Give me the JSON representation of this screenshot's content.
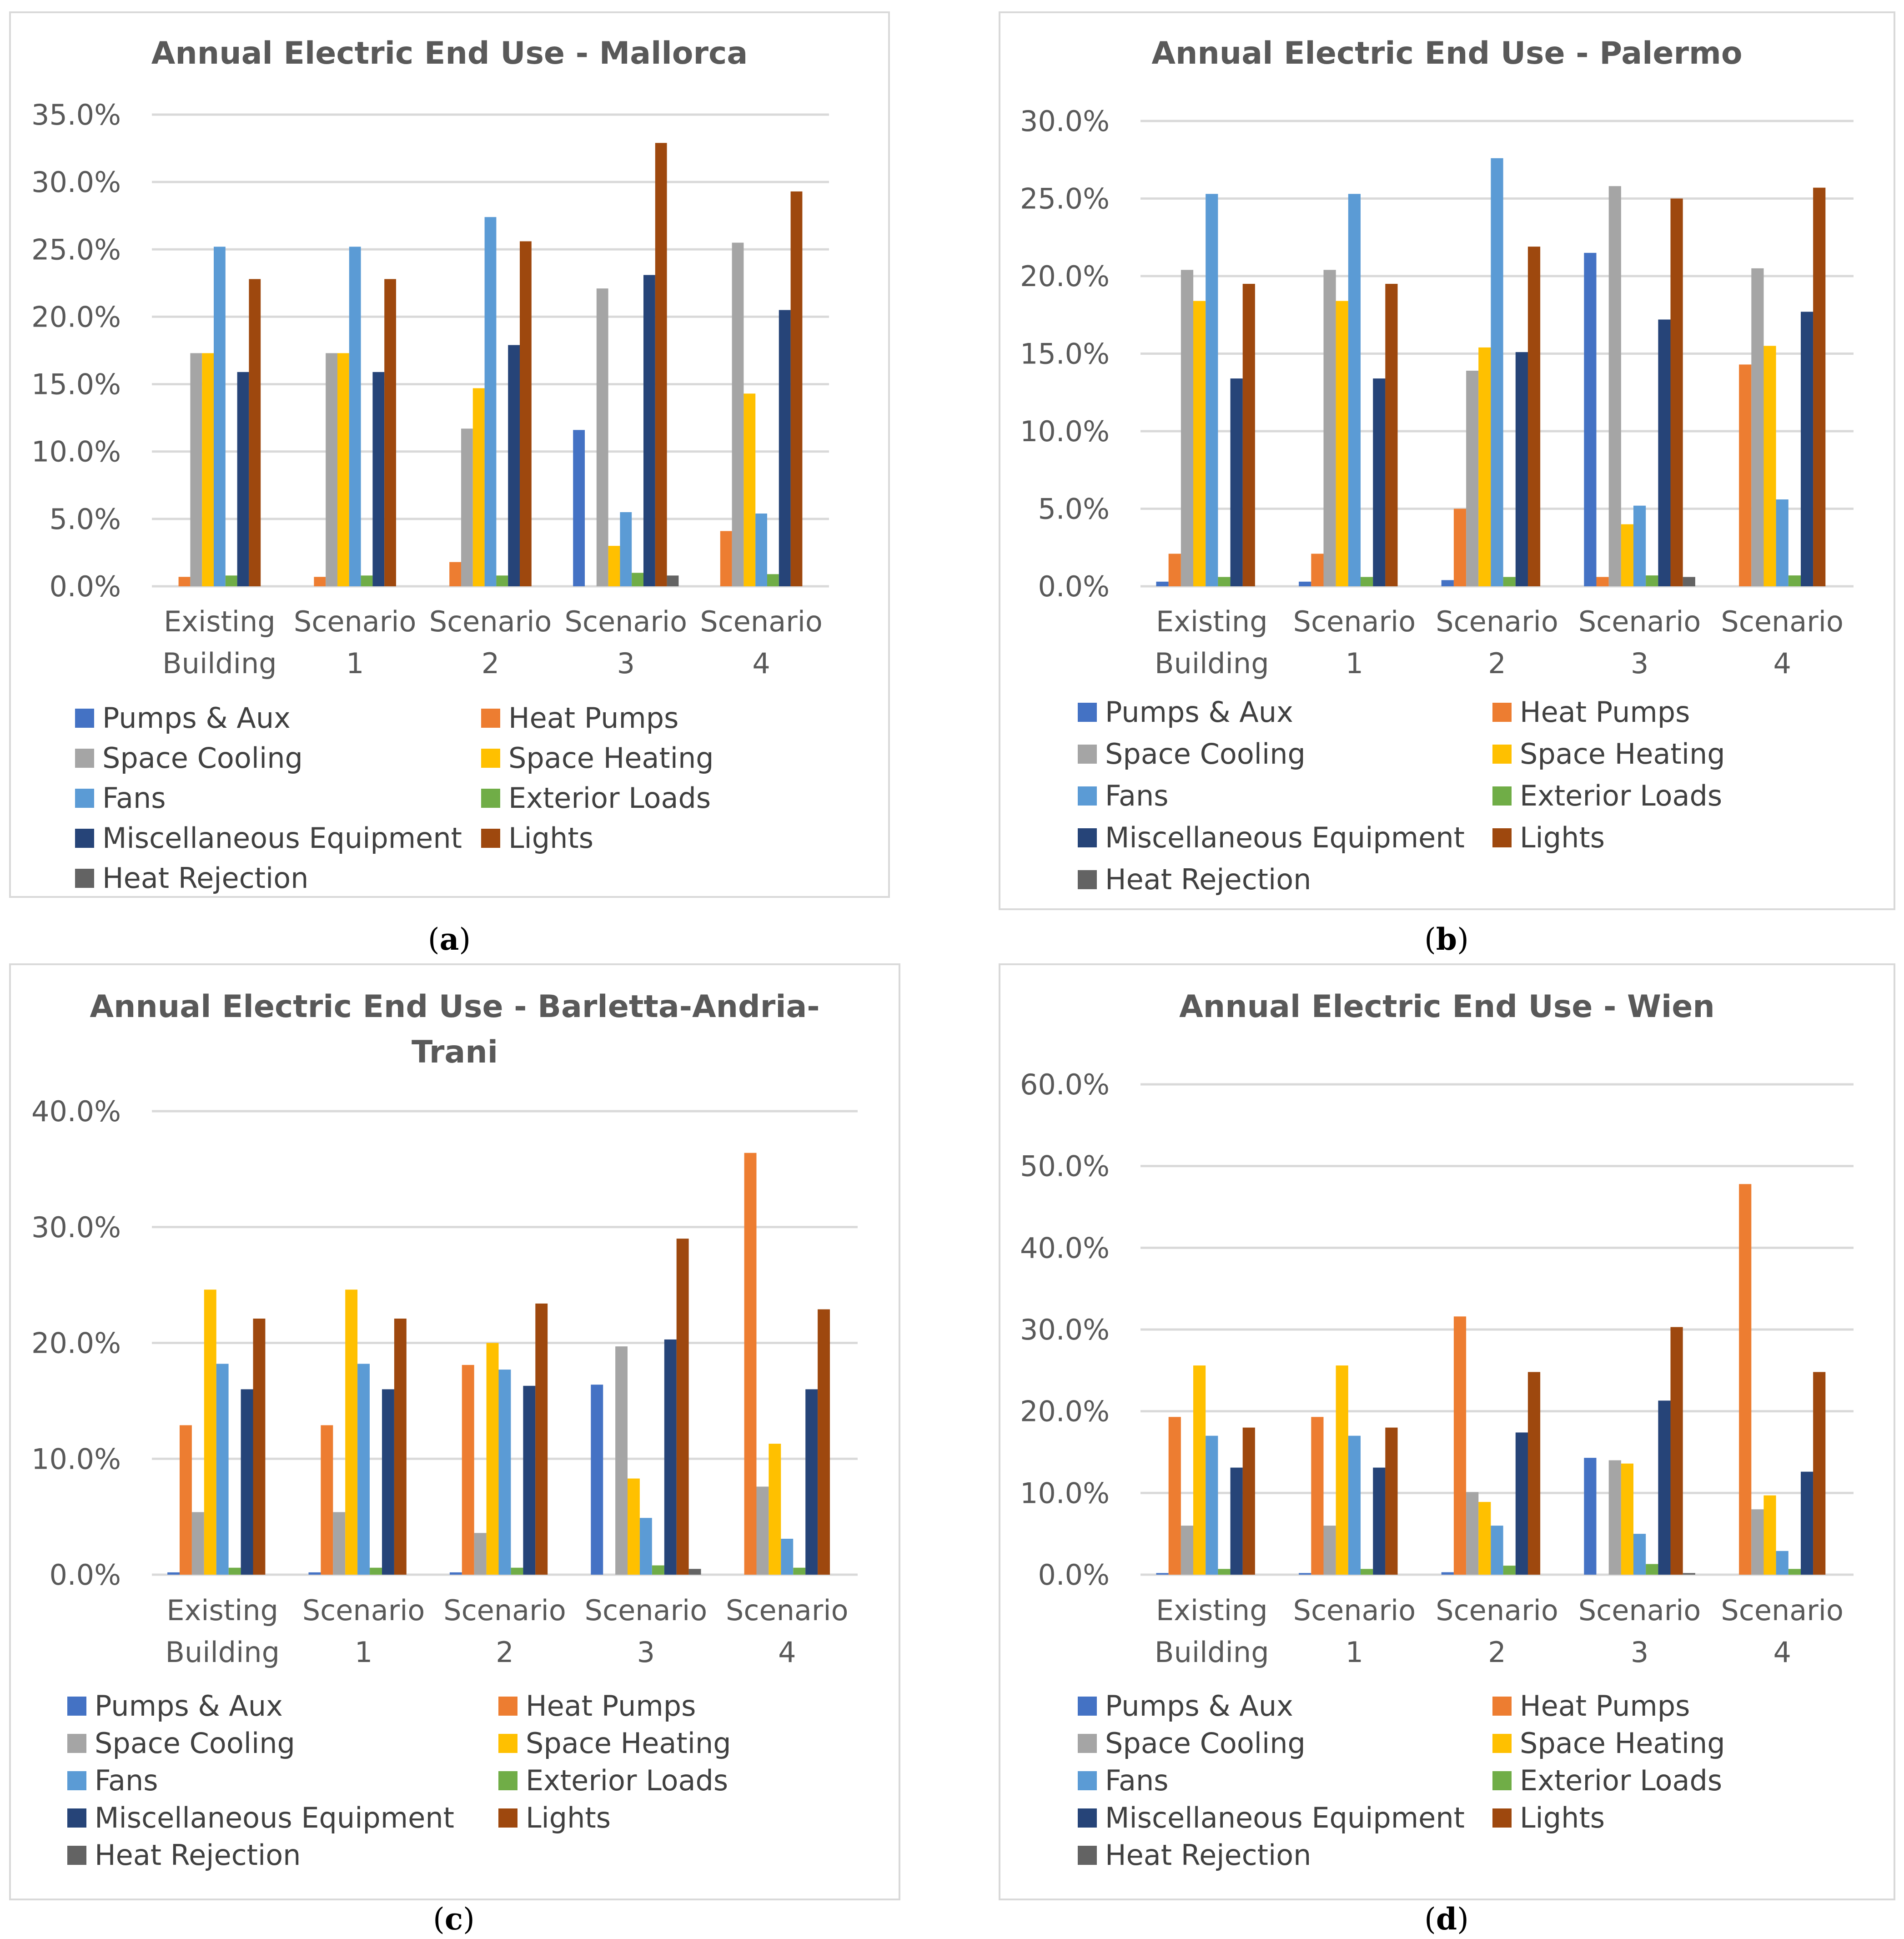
{
  "legend_colors": {
    "Pumps & Aux": "#4472C4",
    "Heat Pumps": "#ED7D31",
    "Space Cooling": "#A5A5A5",
    "Space Heating": "#FFC000",
    "Fans": "#5B9BD5",
    "Exterior Loads": "#70AD47",
    "Miscellaneous Equipment": "#264478",
    "Lights": "#9E480E",
    "Heat Rejection": "#636363"
  },
  "chart_data": [
    {
      "type": "bar",
      "panel": "(a)",
      "title": "Annual Electric End Use - Mallorca",
      "title_lines": [
        "Annual Electric End Use - Mallorca"
      ],
      "categories": [
        [
          "Existing",
          "Building"
        ],
        [
          "Scenario",
          "1"
        ],
        [
          "Scenario",
          "2"
        ],
        [
          "Scenario",
          "3"
        ],
        [
          "Scenario",
          "4"
        ]
      ],
      "yticks": [
        "0.0%",
        "5.0%",
        "10.0%",
        "15.0%",
        "20.0%",
        "25.0%",
        "30.0%",
        "35.0%"
      ],
      "ylim": [
        0,
        35
      ],
      "series": [
        {
          "name": "Pumps & Aux",
          "values": [
            0,
            0,
            0,
            11.6,
            0
          ]
        },
        {
          "name": "Heat Pumps",
          "values": [
            0.7,
            0.7,
            1.8,
            0,
            4.1
          ]
        },
        {
          "name": "Space Cooling",
          "values": [
            17.3,
            17.3,
            11.7,
            22.1,
            25.5
          ]
        },
        {
          "name": "Space Heating",
          "values": [
            17.3,
            17.3,
            14.7,
            3.0,
            14.3
          ]
        },
        {
          "name": "Fans",
          "values": [
            25.2,
            25.2,
            27.4,
            5.5,
            5.4
          ]
        },
        {
          "name": "Exterior Loads",
          "values": [
            0.8,
            0.8,
            0.8,
            1.0,
            0.9
          ]
        },
        {
          "name": "Miscellaneous Equipment",
          "values": [
            15.9,
            15.9,
            17.9,
            23.1,
            20.5
          ]
        },
        {
          "name": "Lights",
          "values": [
            22.8,
            22.8,
            25.6,
            32.9,
            29.3
          ]
        },
        {
          "name": "Heat Rejection",
          "values": [
            0,
            0,
            0,
            0.8,
            0
          ]
        }
      ],
      "caption": "a"
    },
    {
      "type": "bar",
      "panel": "(b)",
      "title": "Annual Electric End Use - Palermo",
      "title_lines": [
        "Annual Electric End Use - Palermo"
      ],
      "categories": [
        [
          "Existing",
          "Building"
        ],
        [
          "Scenario",
          "1"
        ],
        [
          "Scenario",
          "2"
        ],
        [
          "Scenario",
          "3"
        ],
        [
          "Scenario",
          "4"
        ]
      ],
      "yticks": [
        "0.0%",
        "5.0%",
        "10.0%",
        "15.0%",
        "20.0%",
        "25.0%",
        "30.0%"
      ],
      "ylim": [
        0,
        30
      ],
      "series": [
        {
          "name": "Pumps & Aux",
          "values": [
            0.3,
            0.3,
            0.4,
            21.5,
            0
          ]
        },
        {
          "name": "Heat Pumps",
          "values": [
            2.1,
            2.1,
            5.0,
            0.6,
            14.3
          ]
        },
        {
          "name": "Space Cooling",
          "values": [
            20.4,
            20.4,
            13.9,
            25.8,
            20.5
          ]
        },
        {
          "name": "Space Heating",
          "values": [
            18.4,
            18.4,
            15.4,
            4.0,
            15.5
          ]
        },
        {
          "name": "Fans",
          "values": [
            25.3,
            25.3,
            27.6,
            5.2,
            5.6
          ]
        },
        {
          "name": "Exterior Loads",
          "values": [
            0.6,
            0.6,
            0.6,
            0.7,
            0.7
          ]
        },
        {
          "name": "Miscellaneous Equipment",
          "values": [
            13.4,
            13.4,
            15.1,
            17.2,
            17.7
          ]
        },
        {
          "name": "Lights",
          "values": [
            19.5,
            19.5,
            21.9,
            25.0,
            25.7
          ]
        },
        {
          "name": "Heat Rejection",
          "values": [
            0,
            0,
            0,
            0.6,
            0
          ]
        }
      ],
      "caption": "b"
    },
    {
      "type": "bar",
      "panel": "(c)",
      "title": "Annual Electric End Use - Barletta-Andria-Trani",
      "title_lines": [
        "Annual Electric End Use - Barletta-Andria-",
        "Trani"
      ],
      "categories": [
        [
          "Existing",
          "Building"
        ],
        [
          "Scenario",
          "1"
        ],
        [
          "Scenario",
          "2"
        ],
        [
          "Scenario",
          "3"
        ],
        [
          "Scenario",
          "4"
        ]
      ],
      "yticks": [
        "0.0%",
        "10.0%",
        "20.0%",
        "30.0%",
        "40.0%"
      ],
      "ylim": [
        0,
        40
      ],
      "series": [
        {
          "name": "Pumps & Aux",
          "values": [
            0.2,
            0.2,
            0.2,
            16.4,
            0
          ]
        },
        {
          "name": "Heat Pumps",
          "values": [
            12.9,
            12.9,
            18.1,
            0,
            36.4
          ]
        },
        {
          "name": "Space Cooling",
          "values": [
            5.4,
            5.4,
            3.6,
            19.7,
            7.6
          ]
        },
        {
          "name": "Space Heating",
          "values": [
            24.6,
            24.6,
            20.0,
            8.3,
            11.3
          ]
        },
        {
          "name": "Fans",
          "values": [
            18.2,
            18.2,
            17.7,
            4.9,
            3.1
          ]
        },
        {
          "name": "Exterior Loads",
          "values": [
            0.6,
            0.6,
            0.6,
            0.8,
            0.6
          ]
        },
        {
          "name": "Miscellaneous Equipment",
          "values": [
            16.0,
            16.0,
            16.3,
            20.3,
            16.0
          ]
        },
        {
          "name": "Lights",
          "values": [
            22.1,
            22.1,
            23.4,
            29.0,
            22.9
          ]
        },
        {
          "name": "Heat Rejection",
          "values": [
            0,
            0,
            0,
            0.5,
            0
          ]
        }
      ],
      "caption": "c"
    },
    {
      "type": "bar",
      "panel": "(d)",
      "title": "Annual Electric End Use - Wien",
      "title_lines": [
        "Annual Electric End Use - Wien"
      ],
      "categories": [
        [
          "Existing",
          "Building"
        ],
        [
          "Scenario",
          "1"
        ],
        [
          "Scenario",
          "2"
        ],
        [
          "Scenario",
          "3"
        ],
        [
          "Scenario",
          "4"
        ]
      ],
      "yticks": [
        "0.0%",
        "10.0%",
        "20.0%",
        "30.0%",
        "40.0%",
        "50.0%",
        "60.0%"
      ],
      "ylim": [
        0,
        60
      ],
      "series": [
        {
          "name": "Pumps & Aux",
          "values": [
            0.2,
            0.2,
            0.3,
            14.3,
            0
          ]
        },
        {
          "name": "Heat Pumps",
          "values": [
            19.3,
            19.3,
            31.6,
            0,
            47.8
          ]
        },
        {
          "name": "Space Cooling",
          "values": [
            6.0,
            6.0,
            10.1,
            14.0,
            8.0
          ]
        },
        {
          "name": "Space Heating",
          "values": [
            25.6,
            25.6,
            8.9,
            13.6,
            9.7
          ]
        },
        {
          "name": "Fans",
          "values": [
            17.0,
            17.0,
            6.0,
            5.0,
            2.9
          ]
        },
        {
          "name": "Exterior Loads",
          "values": [
            0.7,
            0.7,
            1.1,
            1.3,
            0.7
          ]
        },
        {
          "name": "Miscellaneous Equipment",
          "values": [
            13.1,
            13.1,
            17.4,
            21.3,
            12.6
          ]
        },
        {
          "name": "Lights",
          "values": [
            18.0,
            18.0,
            24.8,
            30.3,
            24.8
          ]
        },
        {
          "name": "Heat Rejection",
          "values": [
            0,
            0,
            0,
            0.2,
            0
          ]
        }
      ],
      "caption": "d"
    }
  ]
}
